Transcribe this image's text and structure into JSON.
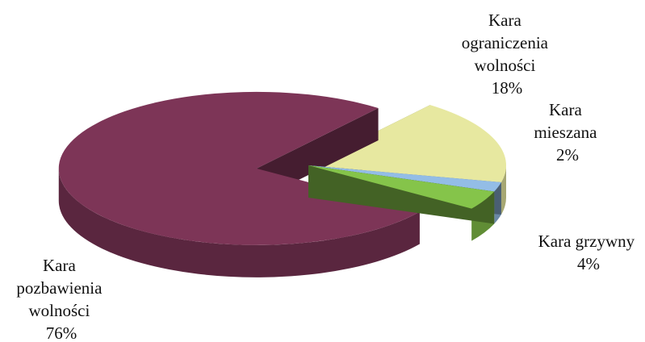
{
  "chart_data": {
    "type": "pie",
    "style": "3d-exploded",
    "slices": [
      {
        "key": "ograniczenia",
        "name_lines": [
          "Kara",
          "ograniczenia",
          "wolności"
        ],
        "pct_label": "18%",
        "value": 18,
        "color": "#e7e8a0"
      },
      {
        "key": "mieszana",
        "name_lines": [
          "Kara",
          "mieszana"
        ],
        "pct_label": "2%",
        "value": 2,
        "color": "#93bde6"
      },
      {
        "key": "grzywny",
        "name_lines": [
          "Kara grzywny"
        ],
        "pct_label": "4%",
        "value": 4,
        "color": "#85c44a"
      },
      {
        "key": "pozbawienia",
        "name_lines": [
          "Kara",
          "pozbawienia",
          "wolności"
        ],
        "pct_label": "76%",
        "value": 76,
        "color": "#7d3557"
      }
    ]
  }
}
